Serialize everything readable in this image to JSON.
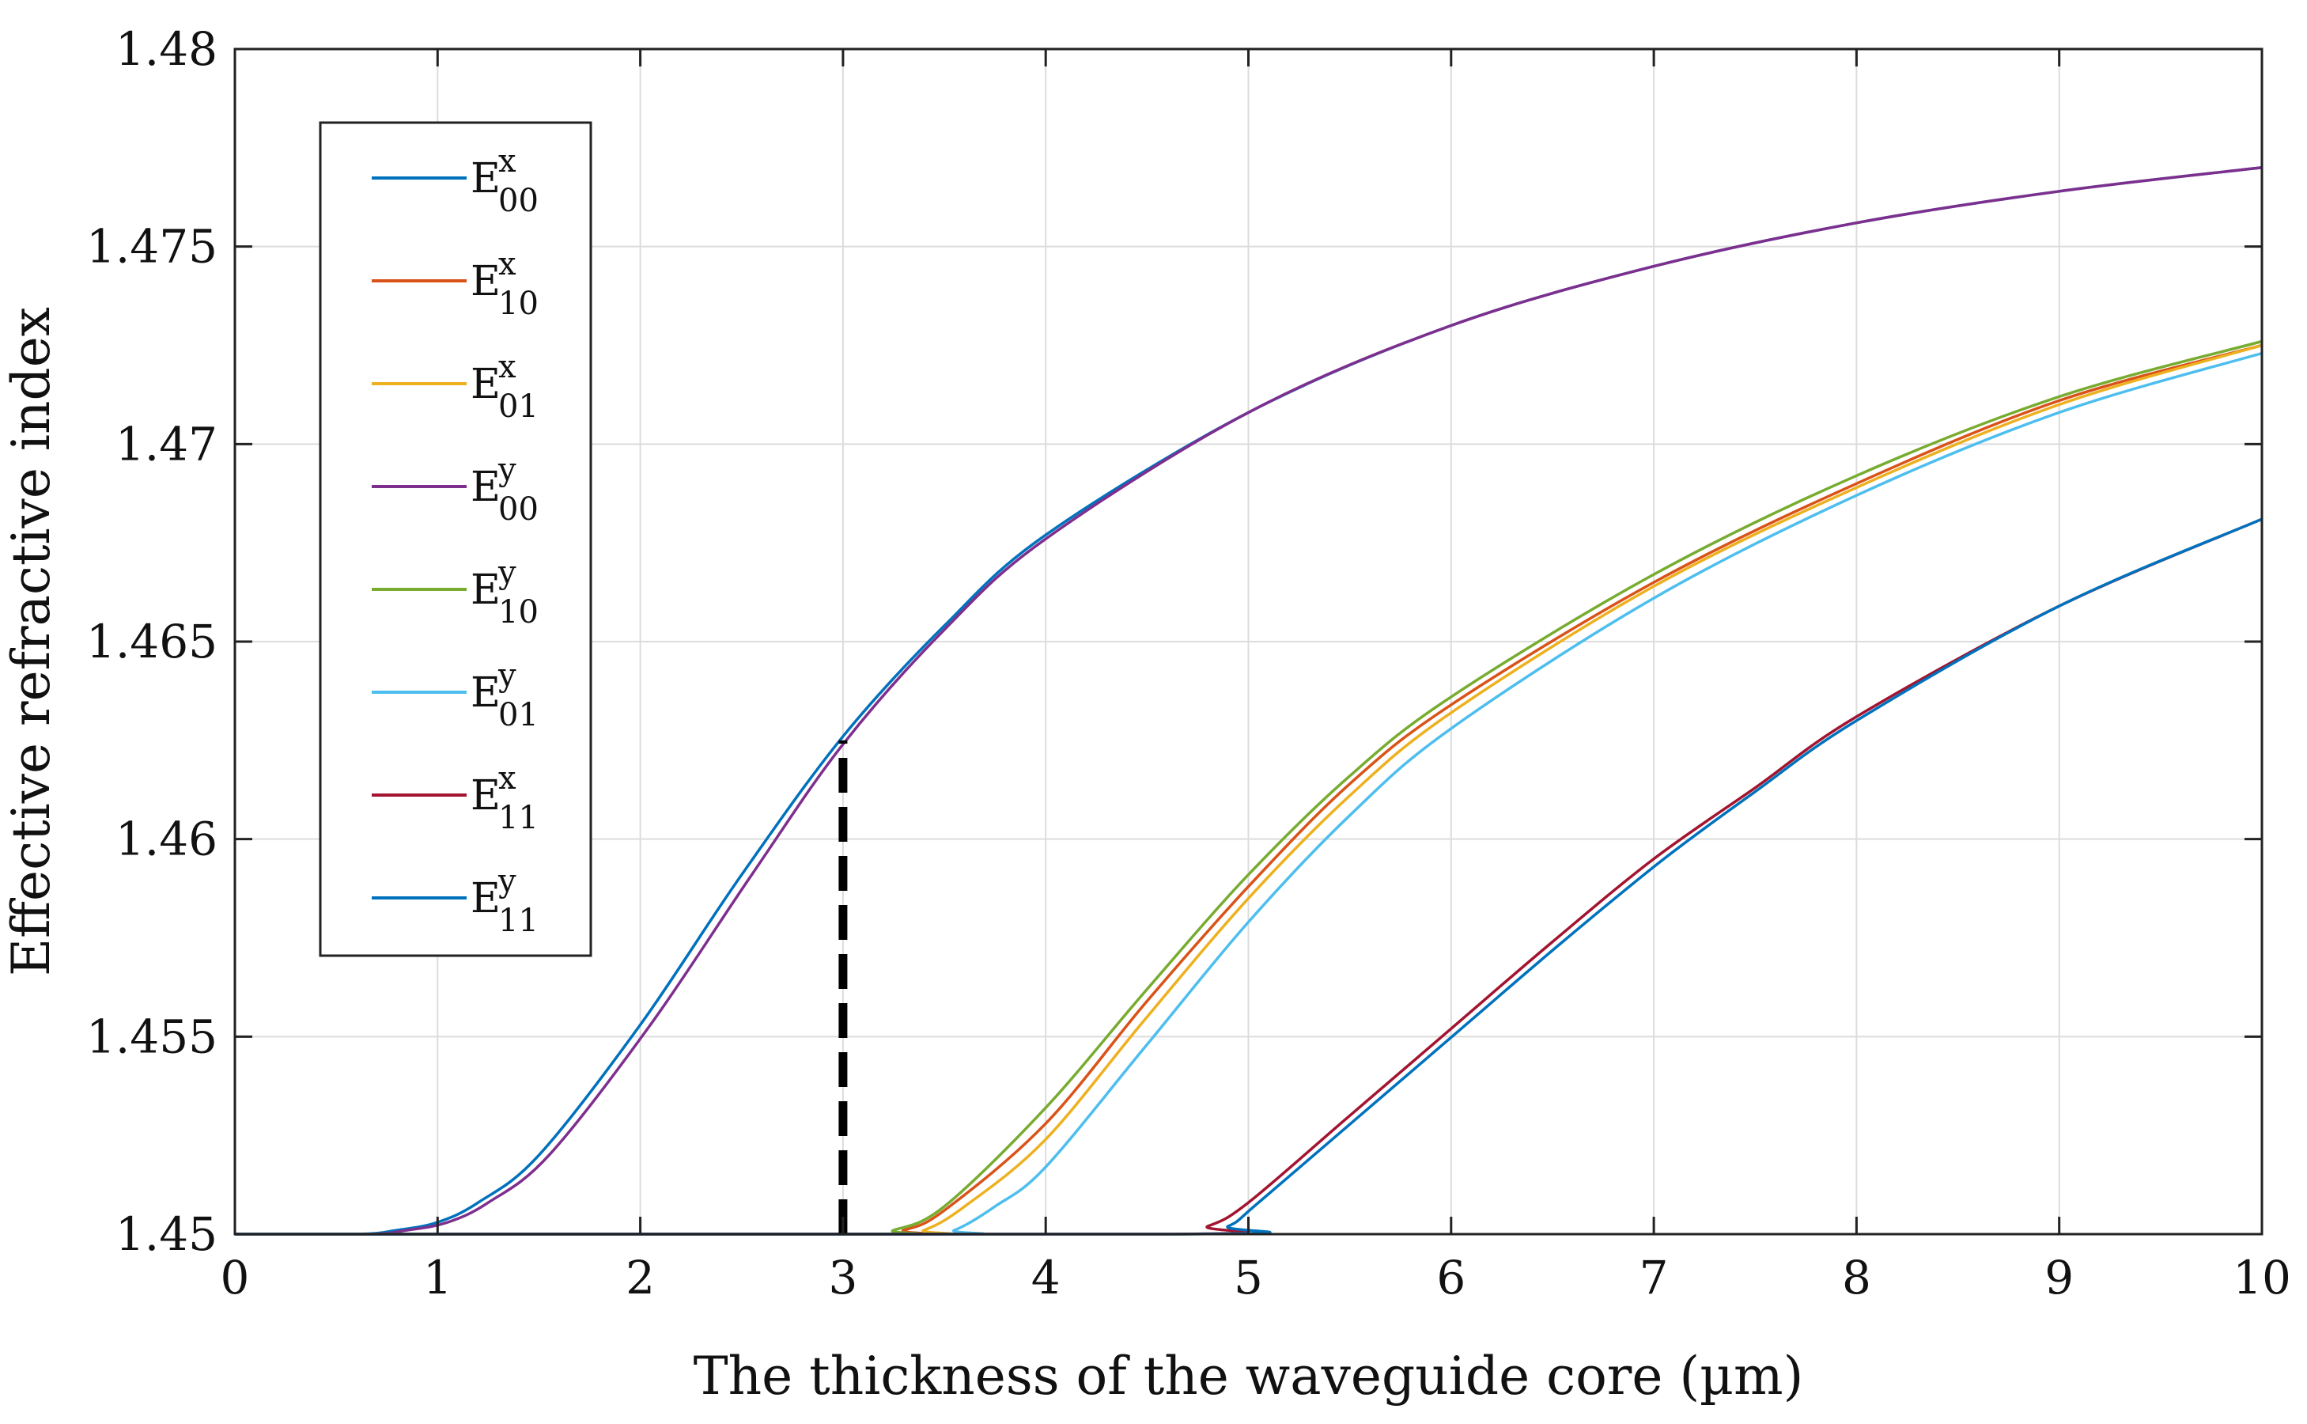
{
  "chart_data": {
    "type": "line",
    "title": "",
    "xlabel": "The thickness of the waveguide core (µm)",
    "ylabel": "Effective refractive index",
    "xlim": [
      0,
      10
    ],
    "ylim": [
      1.45,
      1.48
    ],
    "xticks": [
      0,
      1,
      2,
      3,
      4,
      5,
      6,
      7,
      8,
      9,
      10
    ],
    "xtick_labels": [
      "0",
      "1",
      "2",
      "3",
      "4",
      "5",
      "6",
      "7",
      "8",
      "9",
      "10"
    ],
    "yticks": [
      1.45,
      1.455,
      1.46,
      1.465,
      1.47,
      1.475,
      1.48
    ],
    "ytick_labels": [
      "1.45",
      "1.455",
      "1.46",
      "1.465",
      "1.47",
      "1.475",
      "1.48"
    ],
    "grid": true,
    "legend_position": "top-left",
    "annotation": {
      "type": "dashed-vertical-line",
      "x": 3,
      "y_from": 1.45,
      "y_to": 1.4625,
      "color": "#000000"
    },
    "series": [
      {
        "name": "E_00^x",
        "base": "E",
        "sup": "x",
        "sub": "00",
        "color": "#0072BD",
        "x": [
          0,
          0.6,
          0.8,
          1.0,
          1.2,
          1.5,
          2.0,
          2.5,
          3.0,
          3.5,
          4.0,
          5.0,
          6.0,
          7.0,
          8.0,
          9.0,
          10.0
        ],
        "y": [
          1.45,
          1.45,
          1.4501,
          1.4503,
          1.4508,
          1.452,
          1.4553,
          1.4591,
          1.4626,
          1.4654,
          1.4677,
          1.4708,
          1.473,
          1.4745,
          1.4756,
          1.4764,
          1.477
        ]
      },
      {
        "name": "E_10^x",
        "base": "E",
        "sup": "x",
        "sub": "10",
        "color": "#D95319",
        "x": [
          0,
          3.15,
          3.3,
          3.5,
          4.0,
          4.5,
          5.0,
          5.5,
          6.0,
          7.0,
          8.0,
          9.0,
          10.0
        ],
        "y": [
          1.45,
          1.45,
          1.4501,
          1.4506,
          1.4528,
          1.4559,
          1.4588,
          1.4614,
          1.4634,
          1.4665,
          1.469,
          1.4711,
          1.4725
        ]
      },
      {
        "name": "E_01^x",
        "base": "E",
        "sup": "x",
        "sub": "01",
        "color": "#EDB120",
        "x": [
          0,
          3.25,
          3.4,
          3.6,
          4.0,
          4.5,
          5.0,
          5.5,
          6.0,
          7.0,
          8.0,
          9.0,
          10.0
        ],
        "y": [
          1.45,
          1.45,
          1.4501,
          1.4507,
          1.4524,
          1.4555,
          1.4585,
          1.4611,
          1.4632,
          1.4664,
          1.4689,
          1.471,
          1.4725
        ]
      },
      {
        "name": "E_00^y",
        "base": "E",
        "sup": "y",
        "sub": "00",
        "color": "#7E2F8E",
        "x": [
          0,
          0.65,
          0.85,
          1.05,
          1.25,
          1.55,
          2.05,
          2.55,
          3.0,
          3.5,
          4.0,
          5.0,
          6.0,
          7.0,
          8.0,
          9.0,
          10.0
        ],
        "y": [
          1.45,
          1.45,
          1.4501,
          1.4503,
          1.4508,
          1.452,
          1.4553,
          1.4591,
          1.4624,
          1.4653,
          1.4676,
          1.4708,
          1.473,
          1.4745,
          1.4756,
          1.4764,
          1.477
        ]
      },
      {
        "name": "E_10^y",
        "base": "E",
        "sup": "y",
        "sub": "10",
        "color": "#77AC30",
        "x": [
          0,
          3.1,
          3.25,
          3.5,
          4.0,
          4.5,
          5.0,
          5.5,
          6.0,
          7.0,
          8.0,
          9.0,
          10.0
        ],
        "y": [
          1.45,
          1.45,
          1.4501,
          1.4507,
          1.4532,
          1.4562,
          1.4591,
          1.4616,
          1.4636,
          1.4667,
          1.4692,
          1.4712,
          1.4726
        ]
      },
      {
        "name": "E_01^y",
        "base": "E",
        "sup": "y",
        "sub": "01",
        "color": "#4DBEEE",
        "x": [
          0,
          3.4,
          3.55,
          3.75,
          4.0,
          4.5,
          5.0,
          5.5,
          6.0,
          7.0,
          8.0,
          9.0,
          10.0
        ],
        "y": [
          1.45,
          1.45,
          1.4501,
          1.4507,
          1.4517,
          1.4548,
          1.4579,
          1.4606,
          1.4628,
          1.4661,
          1.4687,
          1.4708,
          1.4723
        ]
      },
      {
        "name": "E_11^x",
        "base": "E",
        "sup": "x",
        "sub": "11",
        "color": "#A2142F",
        "x": [
          0,
          4.6,
          4.8,
          5.0,
          5.5,
          6.0,
          6.5,
          7.0,
          7.5,
          8.0,
          9.0,
          10.0
        ],
        "y": [
          1.45,
          1.45,
          1.4502,
          1.4508,
          1.453,
          1.4552,
          1.4574,
          1.4595,
          1.4613,
          1.4631,
          1.4659,
          1.4681
        ]
      },
      {
        "name": "E_11^y",
        "base": "E",
        "sup": "y",
        "sub": "11",
        "color": "#0072BD",
        "x": [
          0,
          4.7,
          4.9,
          5.05,
          5.55,
          6.05,
          6.55,
          7.05,
          7.5,
          8.0,
          9.0,
          10.0
        ],
        "y": [
          1.45,
          1.45,
          1.4502,
          1.4508,
          1.453,
          1.4552,
          1.4574,
          1.4595,
          1.4612,
          1.463,
          1.4659,
          1.4681
        ]
      }
    ]
  }
}
